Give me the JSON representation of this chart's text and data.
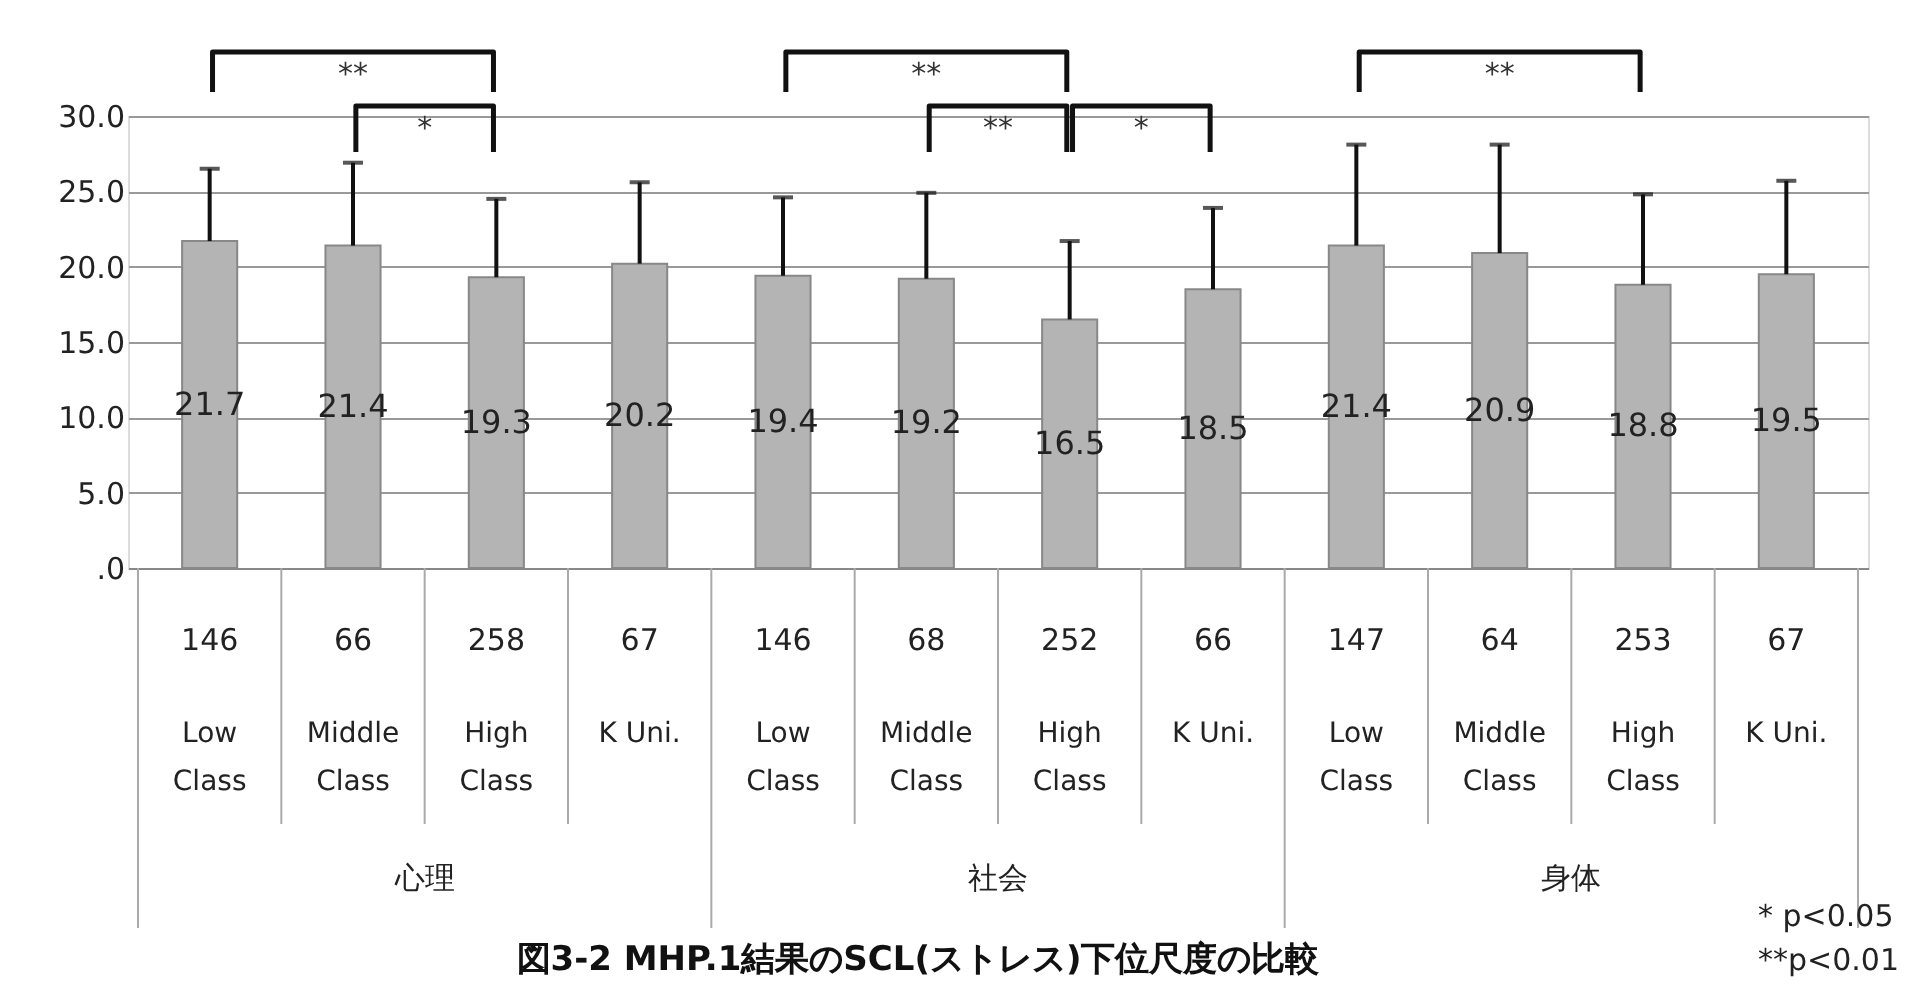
{
  "chart_data": {
    "type": "bar",
    "title": "図3-2  MHP.1結果のSCL(ストレス)下位尺度の比較",
    "categories": [
      "Low Class",
      "Middle Class",
      "High Class",
      "K Uni.",
      "Low Class",
      "Middle Class",
      "High Class",
      "K Uni.",
      "Low Class",
      "Middle Class",
      "High Class",
      "K Uni."
    ],
    "values": [
      21.7,
      21.4,
      19.3,
      20.2,
      19.4,
      19.2,
      16.5,
      18.5,
      21.4,
      20.9,
      18.8,
      19.5
    ],
    "errors": [
      [
        21.7,
        26.5
      ],
      [
        21.4,
        26.9
      ],
      [
        19.3,
        24.5
      ],
      [
        20.2,
        25.6
      ],
      [
        19.4,
        24.6
      ],
      [
        19.2,
        24.9
      ],
      [
        16.5,
        21.7
      ],
      [
        18.5,
        23.9
      ],
      [
        21.4,
        28.1
      ],
      [
        20.9,
        28.1
      ],
      [
        18.8,
        24.8
      ],
      [
        19.5,
        25.7
      ]
    ],
    "color": "#b4b4b4",
    "data_labels": true,
    "grid": "y",
    "ylim": [
      0,
      30
    ],
    "yticks": [
      {
        "value": 0,
        "label": ".0"
      },
      {
        "value": 5,
        "label": "5.0"
      },
      {
        "value": 10,
        "label": "10.0"
      },
      {
        "value": 15,
        "label": "15.0"
      },
      {
        "value": 20,
        "label": "20.0"
      },
      {
        "value": 25,
        "label": "25.0"
      },
      {
        "value": 30,
        "label": "30.0"
      }
    ],
    "annotations": [
      "**",
      "*",
      "**",
      "**",
      "*",
      "**",
      "146",
      "66",
      "258",
      "67",
      "146",
      "68",
      "252",
      "66",
      "147",
      "64",
      "253",
      "67",
      "心理",
      "社会",
      "身体",
      "*  p<0.05",
      "**p<0.01"
    ]
  }
}
